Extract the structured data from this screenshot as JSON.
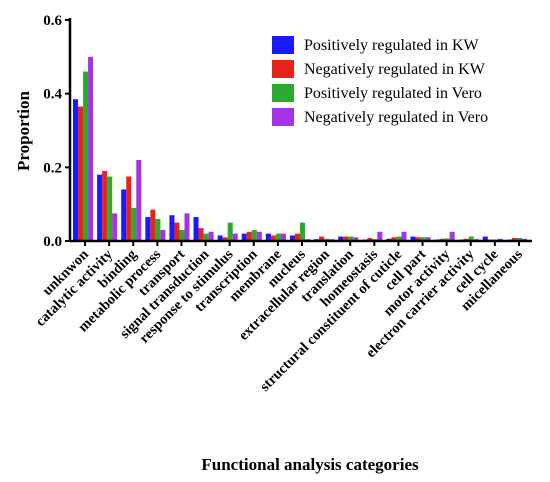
{
  "chart_data": {
    "type": "bar",
    "xlabel": "Functional analysis categories",
    "ylabel": "Proportion",
    "ylim": [
      0,
      0.6
    ],
    "yticks": [
      "0.0",
      "0.2",
      "0.4",
      "0.6"
    ],
    "grid": false,
    "legend_position": "top-right",
    "categories": [
      "unknwon",
      "catalytic activity",
      "binding",
      "metabolic process",
      "transport",
      "signal transduction",
      "response to stimulus",
      "transcription",
      "membrane",
      "nucleus",
      "extracellular region",
      "translation",
      "homeostasis",
      "structural constituent of cuticle",
      "cell part",
      "motor activity",
      "electron carrier activity",
      "cell cycle",
      "micellaneous"
    ],
    "series": [
      {
        "name": "Positively regulated in KW",
        "color": "#1a1aff",
        "values": [
          0.385,
          0.18,
          0.14,
          0.065,
          0.07,
          0.065,
          0.015,
          0.02,
          0.02,
          0.015,
          0.005,
          0.012,
          0.004,
          0.006,
          0.012,
          0.004,
          0.004,
          0.012,
          0.004
        ]
      },
      {
        "name": "Negatively regulated in KW",
        "color": "#e8231c",
        "values": [
          0.365,
          0.19,
          0.175,
          0.085,
          0.05,
          0.035,
          0.01,
          0.025,
          0.015,
          0.02,
          0.012,
          0.012,
          0.008,
          0.01,
          0.01,
          0.006,
          0.006,
          0.004,
          0.008
        ]
      },
      {
        "name": "Positively regulated in Vero",
        "color": "#2fa82f",
        "values": [
          0.46,
          0.175,
          0.09,
          0.06,
          0.03,
          0.02,
          0.05,
          0.03,
          0.02,
          0.05,
          0.006,
          0.012,
          0.005,
          0.012,
          0.01,
          0.007,
          0.012,
          0.004,
          0.008
        ]
      },
      {
        "name": "Negatively regulated in Vero",
        "color": "#a633e6",
        "values": [
          0.5,
          0.075,
          0.22,
          0.03,
          0.075,
          0.025,
          0.02,
          0.025,
          0.02,
          0.005,
          0.005,
          0.01,
          0.025,
          0.025,
          0.01,
          0.025,
          0.005,
          0.006,
          0.006
        ]
      }
    ]
  }
}
